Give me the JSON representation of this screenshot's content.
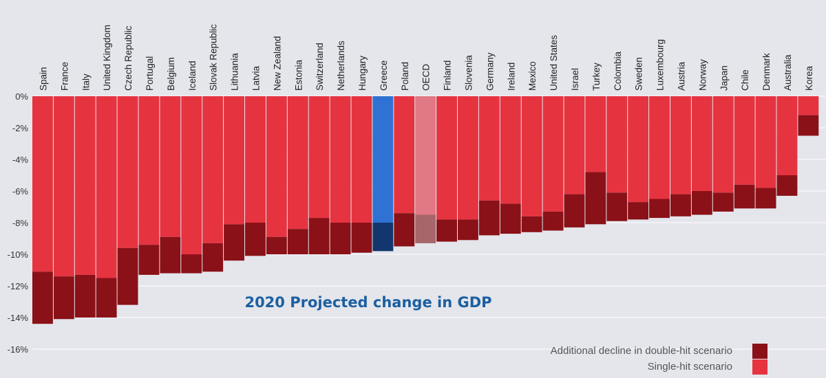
{
  "chart_data": {
    "type": "bar",
    "stacked": true,
    "title": "2020 Projected change in GDP",
    "ylabel": "",
    "xlabel": "",
    "ylim": [
      -16,
      0
    ],
    "yticks": [
      0,
      -2,
      -4,
      -6,
      -8,
      -10,
      -12,
      -14,
      -16
    ],
    "ytick_labels": [
      "0%",
      "-2%",
      "-4%",
      "-6%",
      "-8%",
      "-10%",
      "-12%",
      "-14%",
      "-16%"
    ],
    "grid": true,
    "legend_position": "bottom-right",
    "categories": [
      "Spain",
      "France",
      "Italy",
      "United Kingdom",
      "Czech Republic",
      "Portugal",
      "Belgium",
      "Iceland",
      "Slovak Republic",
      "Lithuania",
      "Latvia",
      "New Zealand",
      "Estonia",
      "Switzerland",
      "Netherlands",
      "Hungary",
      "Greece",
      "Poland",
      "OECD",
      "Finland",
      "Slovenia",
      "Germany",
      "Ireland",
      "Mexico",
      "United States",
      "Israel",
      "Turkey",
      "Colombia",
      "Sweden",
      "Luxembourg",
      "Austria",
      "Norway",
      "Japan",
      "Chile",
      "Denmark",
      "Australia",
      "Korea"
    ],
    "series": [
      {
        "name": "Single-hit scenario",
        "values": [
          -11.1,
          -11.4,
          -11.3,
          -11.5,
          -9.6,
          -9.4,
          -8.9,
          -10.0,
          -9.3,
          -8.1,
          -8.0,
          -8.9,
          -8.4,
          -7.7,
          -8.0,
          -8.0,
          -8.0,
          -7.4,
          -7.5,
          -7.8,
          -7.8,
          -6.6,
          -6.8,
          -7.6,
          -7.3,
          -6.2,
          -4.8,
          -6.1,
          -6.7,
          -6.5,
          -6.2,
          -6.0,
          -6.1,
          -5.6,
          -5.8,
          -5.0,
          -1.2
        ]
      },
      {
        "name": "Additional decline in double-hit scenario",
        "values": [
          -3.3,
          -2.7,
          -2.7,
          -2.5,
          -3.6,
          -1.9,
          -2.3,
          -1.2,
          -1.8,
          -2.3,
          -2.1,
          -1.1,
          -1.6,
          -2.3,
          -2.0,
          -1.9,
          -1.8,
          -2.1,
          -1.8,
          -1.4,
          -1.3,
          -2.2,
          -1.9,
          -1.0,
          -1.2,
          -2.1,
          -3.3,
          -1.8,
          -1.1,
          -1.2,
          -1.4,
          -1.5,
          -1.2,
          -1.5,
          -1.3,
          -1.3,
          -1.3
        ]
      }
    ],
    "highlight": {
      "Greece": "focus",
      "OECD": "average"
    },
    "colors": {
      "single": "#e63340",
      "additional": "#8a1117",
      "greece_single": "#2f72d3",
      "greece_additional": "#12366e",
      "oecd_single": "#e07983",
      "oecd_additional": "#a6666a",
      "background": "#e4e6ec",
      "grid": "#ffffff"
    }
  }
}
